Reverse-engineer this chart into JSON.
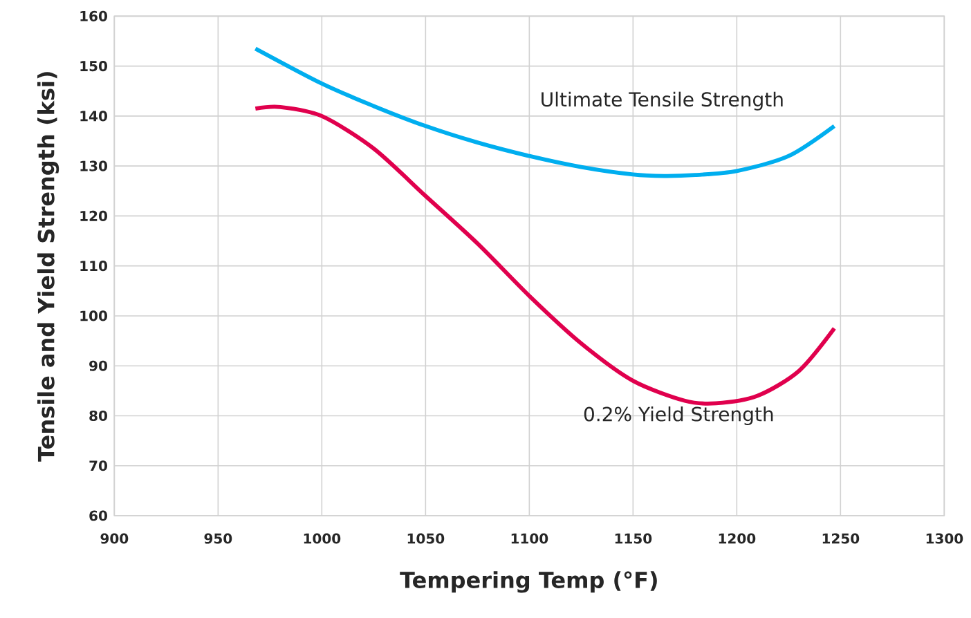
{
  "chart_data": {
    "type": "line",
    "xlabel": "Tempering Temp (°F)",
    "ylabel": "Tensile and Yield Strength (ksi)",
    "xlim": [
      900,
      1300
    ],
    "xticks": [
      900,
      950,
      1000,
      1050,
      1100,
      1150,
      1200,
      1250,
      1300
    ],
    "ylim": [
      60,
      160
    ],
    "yticks": [
      60,
      70,
      80,
      90,
      100,
      110,
      120,
      130,
      140,
      150,
      160
    ],
    "grid": true,
    "legend": false,
    "marker": "none",
    "line_style": "solid",
    "series": [
      {
        "name": "Ultimate Tensile Strength",
        "color": "#00aeef",
        "x": [
          968,
          1000,
          1025,
          1050,
          1075,
          1100,
          1125,
          1150,
          1165,
          1180,
          1200,
          1225,
          1247
        ],
        "values": [
          153.5,
          146.5,
          142,
          138,
          134.7,
          132,
          129.8,
          128.3,
          128,
          128.2,
          129,
          132,
          138
        ]
      },
      {
        "name": "0.2% Yield Strength",
        "color": "#e0004d",
        "x": [
          968,
          980,
          1000,
          1025,
          1050,
          1075,
          1100,
          1125,
          1150,
          1175,
          1190,
          1210,
          1230,
          1247
        ],
        "values": [
          141.5,
          141.8,
          140,
          133.5,
          124,
          114.5,
          104,
          94.5,
          87,
          83,
          82.5,
          84,
          89,
          97.5
        ]
      }
    ]
  }
}
